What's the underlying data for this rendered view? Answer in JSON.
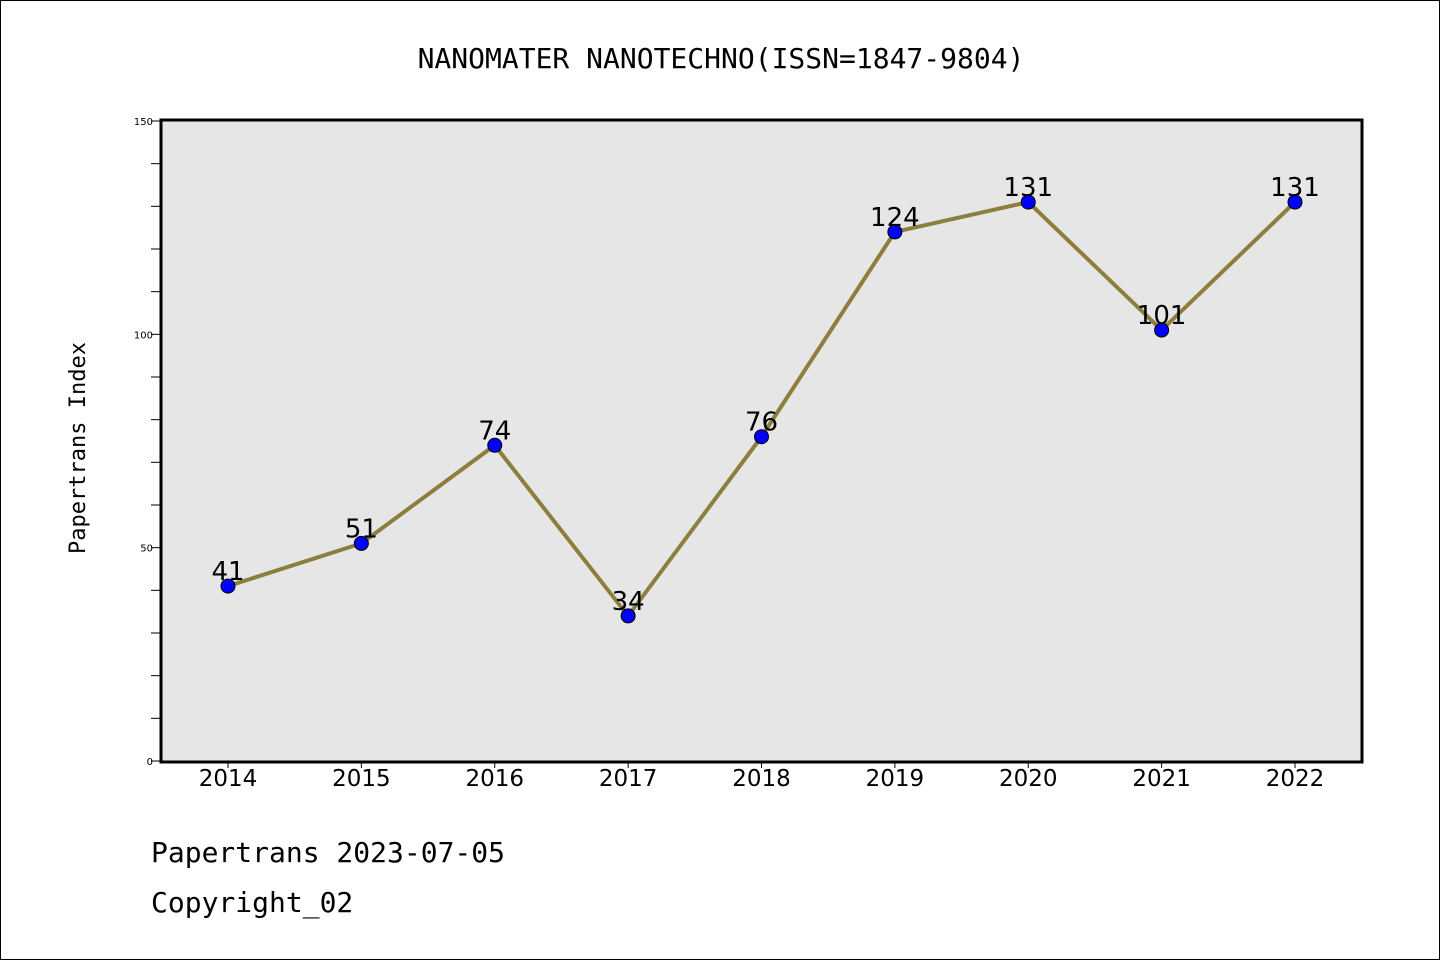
{
  "chart_data": {
    "type": "line",
    "title": "NANOMATER NANOTECHNO(ISSN=1847-9804)",
    "xlabel": "",
    "ylabel": "Papertrans Index",
    "categories": [
      "2014",
      "2015",
      "2016",
      "2017",
      "2018",
      "2019",
      "2020",
      "2021",
      "2022"
    ],
    "values": [
      41,
      51,
      74,
      34,
      76,
      124,
      131,
      101,
      131
    ],
    "ylim": [
      0,
      150
    ],
    "yticks": [
      0,
      50,
      100,
      150
    ],
    "grid": false,
    "legend": "none",
    "colors": {
      "line": "#8c7f3e",
      "marker": "#0000ff",
      "plot_background": "#e6e6e6"
    }
  },
  "footer": {
    "line1": "Papertrans 2023-07-05",
    "line2": "Copyright_02"
  }
}
